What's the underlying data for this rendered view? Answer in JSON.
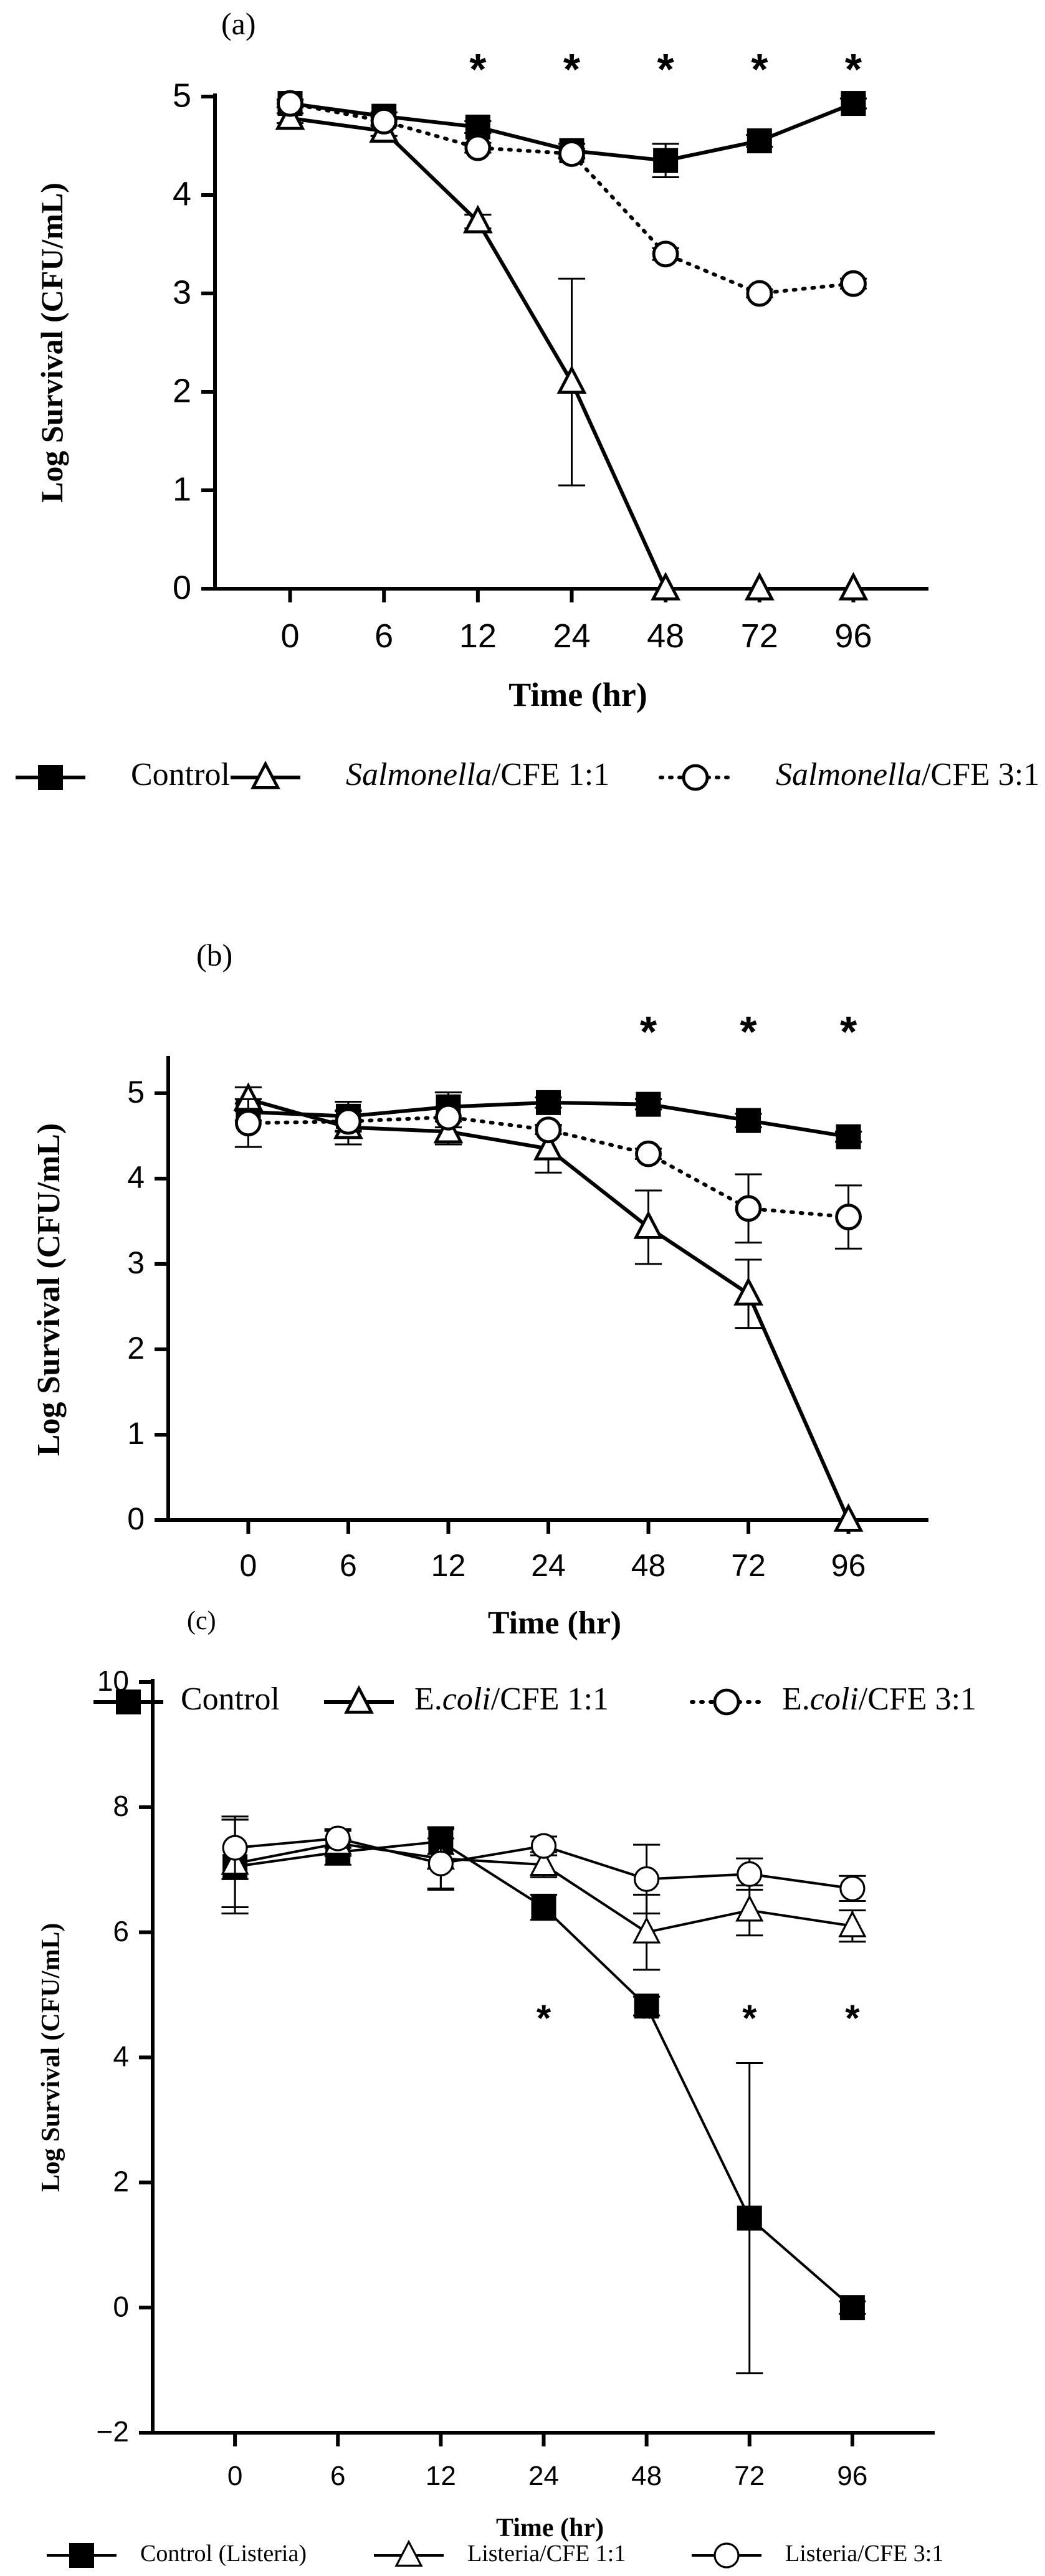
{
  "chart_data": [
    {
      "type": "line",
      "panel_label": "(a)",
      "xlabel": "Time (hr)",
      "ylabel": "Log Survival (CFU/mL)",
      "categories": [
        "0",
        "6",
        "12",
        "24",
        "48",
        "72",
        "96"
      ],
      "ylim": [
        0,
        5
      ],
      "yticks": [
        0,
        1,
        2,
        3,
        4,
        5
      ],
      "significance": [
        "",
        "",
        "*",
        "*",
        "*",
        "*",
        "*"
      ],
      "series": [
        {
          "name": "Control",
          "legend_parts": [
            {
              "text": "Control",
              "italic": false
            }
          ],
          "marker": "square-filled",
          "dashed": false,
          "values": [
            4.93,
            4.8,
            4.69,
            4.45,
            4.35,
            4.55,
            4.93
          ],
          "errors": [
            0.04,
            0.04,
            0.06,
            0.07,
            0.17,
            0.06,
            0.05
          ]
        },
        {
          "name": "Salmonella/CFE 1:1",
          "legend_parts": [
            {
              "text": "Salmonella",
              "italic": true
            },
            {
              "text": "/CFE 1:1",
              "italic": false
            }
          ],
          "marker": "triangle-open",
          "dashed": false,
          "values": [
            4.78,
            4.65,
            3.73,
            2.1,
            0,
            0,
            0
          ],
          "errors": [
            0.05,
            0.05,
            0.07,
            1.05,
            0,
            0,
            0
          ]
        },
        {
          "name": "Salmonella/CFE 3:1",
          "legend_parts": [
            {
              "text": "Salmonella",
              "italic": true
            },
            {
              "text": "/CFE 3:1",
              "italic": false
            }
          ],
          "marker": "circle-open",
          "dashed": true,
          "values": [
            4.93,
            4.75,
            4.48,
            4.42,
            3.4,
            3.0,
            3.1
          ],
          "errors": [
            0.04,
            0.04,
            0.05,
            0.05,
            0.06,
            0.04,
            0.05
          ]
        }
      ]
    },
    {
      "type": "line",
      "panel_label": "(b)",
      "xlabel": "Time (hr)",
      "ylabel": "Log Survival (CFU/mL)",
      "categories": [
        "0",
        "6",
        "12",
        "24",
        "48",
        "72",
        "96"
      ],
      "ylim": [
        0,
        5.4
      ],
      "yticks": [
        0,
        1,
        2,
        3,
        4,
        5
      ],
      "significance": [
        "",
        "",
        "",
        "",
        "*",
        "*",
        "*"
      ],
      "series": [
        {
          "name": "Control",
          "legend_parts": [
            {
              "text": "Control",
              "italic": false
            }
          ],
          "marker": "square-filled",
          "dashed": false,
          "values": [
            4.78,
            4.73,
            4.84,
            4.89,
            4.87,
            4.68,
            4.49
          ],
          "errors": [
            0.1,
            0.17,
            0.17,
            0.06,
            0.06,
            0.08,
            0.06
          ]
        },
        {
          "name": "E.coli/CFE 1:1",
          "legend_parts": [
            {
              "text": "E.",
              "italic": false
            },
            {
              "text": "coli",
              "italic": true
            },
            {
              "text": "/CFE 1:1",
              "italic": false
            }
          ],
          "marker": "triangle-open",
          "dashed": false,
          "values": [
            4.93,
            4.6,
            4.55,
            4.35,
            3.43,
            2.65,
            0
          ],
          "errors": [
            0.14,
            0.2,
            0.15,
            0.28,
            0.43,
            0.4,
            0
          ]
        },
        {
          "name": "E.coli/CFE 3:1",
          "legend_parts": [
            {
              "text": "E.",
              "italic": false
            },
            {
              "text": "coli",
              "italic": true
            },
            {
              "text": "/CFE 3:1",
              "italic": false
            }
          ],
          "marker": "circle-open",
          "dashed": true,
          "values": [
            4.65,
            4.67,
            4.72,
            4.57,
            4.29,
            3.65,
            3.55
          ],
          "errors": [
            0.28,
            0.12,
            0.12,
            0.05,
            0.06,
            0.4,
            0.37
          ]
        }
      ]
    },
    {
      "type": "line",
      "panel_label": "(c)",
      "xlabel": "Time (hr)",
      "ylabel": "Log Survival (CFU/mL)",
      "categories": [
        "0",
        "6",
        "12",
        "24",
        "48",
        "72",
        "96"
      ],
      "ylim": [
        -2,
        10
      ],
      "yticks": [
        -2,
        0,
        2,
        4,
        6,
        8,
        10
      ],
      "significance": [
        "",
        "",
        "",
        "*",
        "*",
        "*",
        "*"
      ],
      "series": [
        {
          "name": "Control (Listeria)",
          "legend_parts": [
            {
              "text": "Control (Listeria)",
              "italic": false
            }
          ],
          "marker": "square-filled",
          "dashed": false,
          "values": [
            7.05,
            7.28,
            7.45,
            6.4,
            4.82,
            1.43,
            0
          ],
          "errors": [
            0.75,
            0.2,
            0.2,
            0.2,
            0.15,
            2.48,
            0.1
          ]
        },
        {
          "name": "Listeria/CFE 1:1",
          "legend_parts": [
            {
              "text": "Listeria/CFE 1:1",
              "italic": false
            }
          ],
          "marker": "triangle-open",
          "dashed": false,
          "values": [
            7.1,
            7.42,
            7.18,
            7.08,
            6.0,
            6.35,
            6.1
          ],
          "errors": [
            0.7,
            0.2,
            0.5,
            0.2,
            0.6,
            0.4,
            0.25
          ]
        },
        {
          "name": "Listeria/CFE 3:1",
          "legend_parts": [
            {
              "text": "Listeria/CFE 3:1",
              "italic": false
            }
          ],
          "marker": "circle-open",
          "dashed": false,
          "values": [
            7.35,
            7.5,
            7.1,
            7.38,
            6.85,
            6.93,
            6.7
          ],
          "errors": [
            0.5,
            0.15,
            0.4,
            0.15,
            0.55,
            0.25,
            0.2
          ]
        }
      ]
    }
  ]
}
